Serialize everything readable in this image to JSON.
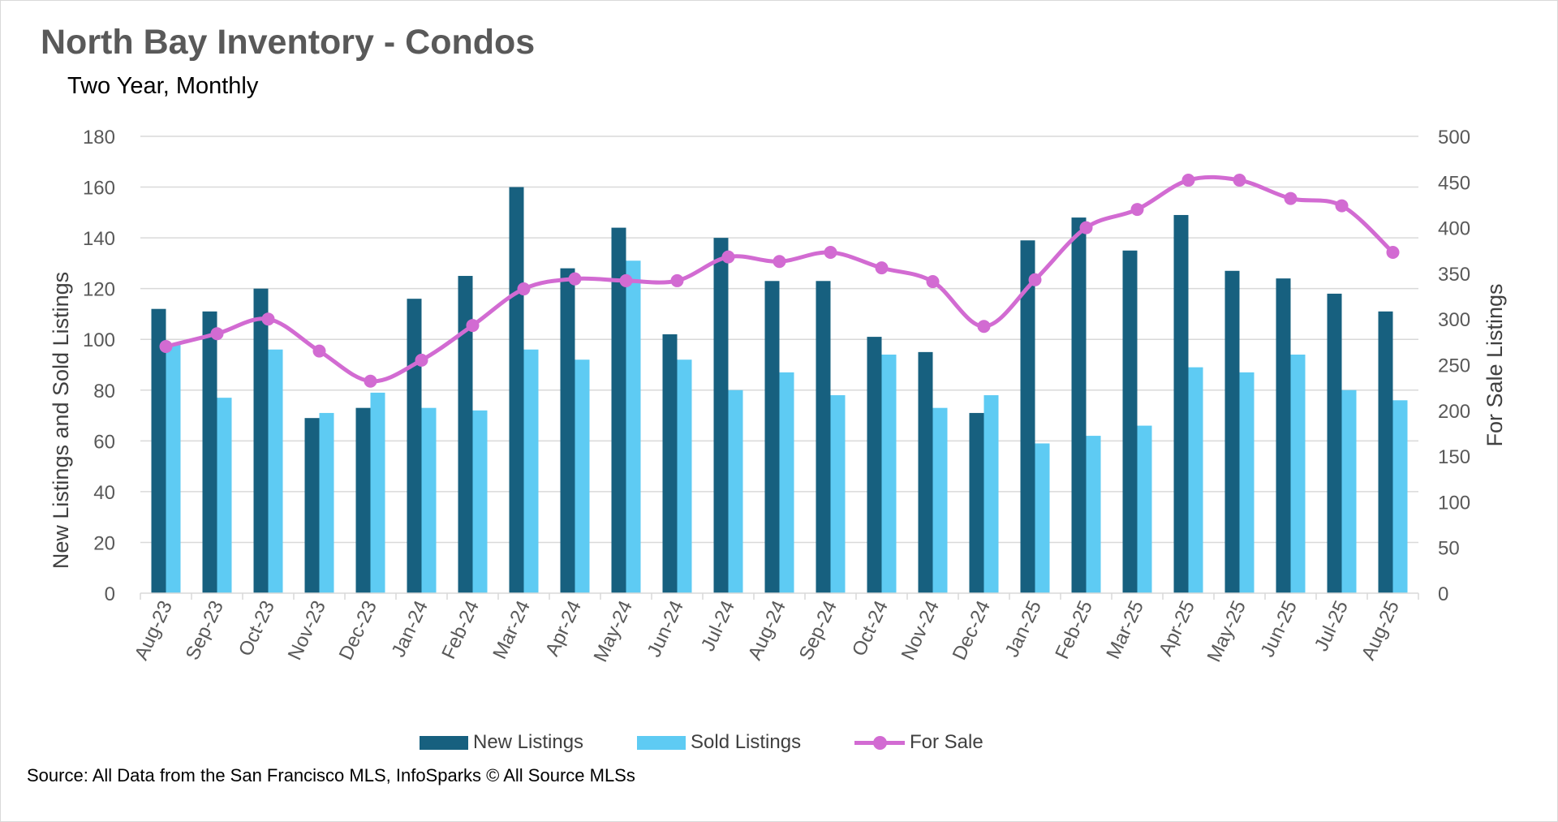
{
  "title": "North Bay Inventory - Condos",
  "subtitle": "Two Year, Monthly",
  "source": "Source: All Data from the San Francisco MLS, InfoSparks © All Source MLSs",
  "colors": {
    "new_listings": "#17607f",
    "sold_listings": "#5ecbf3",
    "for_sale": "#d26bd2",
    "grid": "#d9d9d9",
    "axis_text": "#595959"
  },
  "legend": {
    "new_listings": "New Listings",
    "sold_listings": "Sold Listings",
    "for_sale": "For Sale"
  },
  "chart_data": {
    "type": "bar",
    "categories": [
      "Aug-23",
      "Sep-23",
      "Oct-23",
      "Nov-23",
      "Dec-23",
      "Jan-24",
      "Feb-24",
      "Mar-24",
      "Apr-24",
      "May-24",
      "Jun-24",
      "Jul-24",
      "Aug-24",
      "Sep-24",
      "Oct-24",
      "Nov-24",
      "Dec-24",
      "Jan-25",
      "Feb-25",
      "Mar-25",
      "Apr-25",
      "May-25",
      "Jun-25",
      "Jul-25",
      "Aug-25"
    ],
    "ylabel": "New Listings and Sold Listings",
    "y2label": "For Sale Listings",
    "ylim": [
      0,
      180
    ],
    "y2lim": [
      0,
      500
    ],
    "yticks": [
      "0",
      "20",
      "40",
      "60",
      "80",
      "100",
      "120",
      "140",
      "160",
      "180"
    ],
    "y2ticks": [
      "0",
      "50",
      "100",
      "150",
      "200",
      "250",
      "300",
      "350",
      "400",
      "450",
      "500"
    ],
    "grid": true,
    "legend_position": "bottom",
    "series": [
      {
        "name": "New Listings",
        "type": "bar",
        "axis": "left",
        "values": [
          112,
          111,
          120,
          69,
          73,
          116,
          125,
          160,
          128,
          144,
          102,
          140,
          123,
          123,
          101,
          95,
          71,
          139,
          148,
          135,
          149,
          127,
          124,
          118,
          111
        ]
      },
      {
        "name": "Sold Listings",
        "type": "bar",
        "axis": "left",
        "values": [
          98,
          77,
          96,
          71,
          79,
          73,
          72,
          96,
          92,
          131,
          92,
          80,
          87,
          78,
          94,
          73,
          78,
          59,
          62,
          66,
          89,
          87,
          94,
          80,
          76
        ]
      },
      {
        "name": "For Sale",
        "type": "line",
        "axis": "right",
        "smooth": true,
        "values": [
          270,
          284,
          300,
          265,
          232,
          255,
          293,
          333,
          344,
          342,
          342,
          368,
          363,
          373,
          356,
          341,
          292,
          343,
          400,
          420,
          452,
          452,
          432,
          424,
          373
        ]
      }
    ]
  }
}
